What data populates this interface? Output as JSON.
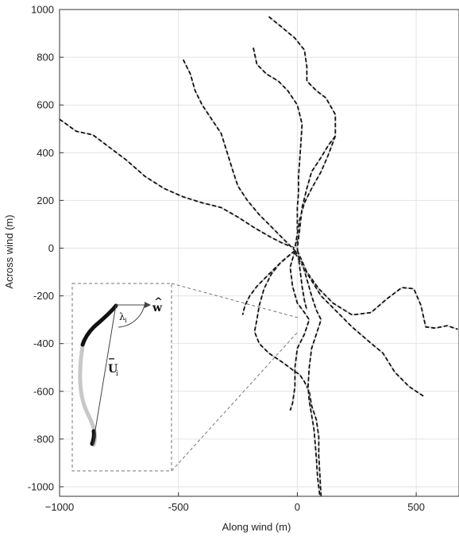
{
  "chart_data": {
    "type": "line",
    "xlabel": "Along wind (m)",
    "ylabel": "Across wind (m)",
    "xlim": [
      -1000,
      680
    ],
    "ylim": [
      -1040,
      1000
    ],
    "xticks": [
      -1000,
      -500,
      0,
      500
    ],
    "xtick_labels": [
      "−1000",
      "-500",
      "0",
      "500"
    ],
    "yticks": [
      1000,
      800,
      600,
      400,
      200,
      0,
      -200,
      -400,
      -600,
      -800,
      -1000
    ],
    "ytick_labels": [
      "1000",
      "800",
      "600",
      "400",
      "200",
      "0",
      "-200",
      "-400",
      "-600",
      "-800",
      "-1000"
    ],
    "grid": true,
    "colors": {
      "track": "#111111",
      "gap": "#c8c8c8",
      "grid": "#e3e3e3",
      "inset": "#777777"
    },
    "series": [
      {
        "points": [
          [
            -1000,
            540
          ],
          [
            -930,
            490
          ],
          [
            -860,
            475
          ],
          [
            -800,
            430
          ],
          [
            -720,
            370
          ],
          [
            -640,
            300
          ],
          [
            -560,
            250
          ],
          [
            -480,
            215
          ],
          [
            -400,
            190
          ],
          [
            -320,
            170
          ],
          [
            -250,
            130
          ],
          [
            -180,
            85
          ],
          [
            -110,
            45
          ],
          [
            -60,
            20
          ],
          [
            -10,
            0
          ]
        ]
      },
      {
        "points": [
          [
            -480,
            790
          ],
          [
            -450,
            730
          ],
          [
            -430,
            660
          ],
          [
            -400,
            600
          ],
          [
            -360,
            540
          ],
          [
            -320,
            480
          ],
          [
            -295,
            400
          ],
          [
            -270,
            320
          ],
          [
            -250,
            260
          ],
          [
            -210,
            200
          ],
          [
            -160,
            140
          ],
          [
            -110,
            90
          ],
          [
            -60,
            40
          ],
          [
            -10,
            -10
          ]
        ]
      },
      {
        "points": [
          [
            -185,
            840
          ],
          [
            -170,
            770
          ],
          [
            -130,
            730
          ],
          [
            -80,
            700
          ],
          [
            -40,
            660
          ],
          [
            0,
            600
          ],
          [
            20,
            520
          ],
          [
            15,
            440
          ],
          [
            10,
            370
          ],
          [
            5,
            300
          ],
          [
            5,
            230
          ],
          [
            0,
            170
          ],
          [
            0,
            100
          ],
          [
            0,
            40
          ],
          [
            0,
            -10
          ]
        ]
      },
      {
        "points": [
          [
            -120,
            970
          ],
          [
            -70,
            930
          ],
          [
            -10,
            880
          ],
          [
            30,
            830
          ],
          [
            40,
            760
          ],
          [
            40,
            700
          ],
          [
            80,
            660
          ],
          [
            120,
            630
          ],
          [
            160,
            560
          ],
          [
            160,
            470
          ],
          [
            130,
            390
          ],
          [
            100,
            320
          ],
          [
            60,
            250
          ],
          [
            30,
            190
          ],
          [
            10,
            120
          ],
          [
            0,
            60
          ],
          [
            -10,
            0
          ]
        ]
      },
      {
        "points": [
          [
            160,
            470
          ],
          [
            130,
            430
          ],
          [
            100,
            380
          ],
          [
            60,
            320
          ],
          [
            40,
            250
          ],
          [
            20,
            170
          ],
          [
            10,
            80
          ],
          [
            0,
            0
          ],
          [
            10,
            -80
          ],
          [
            20,
            -160
          ],
          [
            30,
            -220
          ],
          [
            40,
            -260
          ]
        ]
      },
      {
        "points": [
          [
            0,
            -10
          ],
          [
            40,
            -100
          ],
          [
            90,
            -170
          ],
          [
            150,
            -230
          ],
          [
            230,
            -280
          ],
          [
            310,
            -270
          ],
          [
            380,
            -210
          ],
          [
            440,
            -165
          ],
          [
            490,
            -170
          ],
          [
            520,
            -240
          ],
          [
            540,
            -330
          ],
          [
            580,
            -335
          ],
          [
            630,
            -325
          ],
          [
            675,
            -340
          ]
        ]
      },
      {
        "points": [
          [
            -10,
            -20
          ],
          [
            50,
            -120
          ],
          [
            100,
            -200
          ],
          [
            160,
            -260
          ],
          [
            230,
            -330
          ],
          [
            300,
            -390
          ],
          [
            360,
            -440
          ],
          [
            410,
            -520
          ],
          [
            470,
            -580
          ],
          [
            530,
            -620
          ]
        ]
      },
      {
        "points": [
          [
            -10,
            -10
          ],
          [
            -70,
            -60
          ],
          [
            -110,
            -110
          ],
          [
            -140,
            -170
          ],
          [
            -160,
            -240
          ],
          [
            -170,
            -300
          ],
          [
            -180,
            -350
          ],
          [
            -160,
            -400
          ],
          [
            -120,
            -440
          ],
          [
            -60,
            -480
          ],
          [
            -20,
            -510
          ],
          [
            10,
            -530
          ],
          [
            30,
            -560
          ],
          [
            50,
            -600
          ],
          [
            60,
            -660
          ],
          [
            80,
            -720
          ],
          [
            90,
            -790
          ],
          [
            90,
            -870
          ],
          [
            95,
            -950
          ],
          [
            100,
            -1040
          ]
        ]
      },
      {
        "points": [
          [
            -10,
            -10
          ],
          [
            -80,
            -70
          ],
          [
            -130,
            -120
          ],
          [
            -170,
            -160
          ],
          [
            -200,
            -200
          ],
          [
            -220,
            -240
          ],
          [
            -230,
            -280
          ]
        ]
      },
      {
        "points": [
          [
            -10,
            -10
          ],
          [
            -30,
            -80
          ],
          [
            -20,
            -160
          ],
          [
            0,
            -230
          ],
          [
            30,
            -270
          ],
          [
            50,
            -300
          ],
          [
            30,
            -360
          ],
          [
            0,
            -420
          ],
          [
            -10,
            -500
          ],
          [
            -10,
            -580
          ],
          [
            -20,
            -650
          ],
          [
            -30,
            -680
          ]
        ]
      },
      {
        "points": [
          [
            -10,
            -10
          ],
          [
            20,
            -60
          ],
          [
            40,
            -130
          ],
          [
            60,
            -200
          ],
          [
            80,
            -260
          ],
          [
            100,
            -300
          ],
          [
            80,
            -360
          ],
          [
            60,
            -420
          ],
          [
            50,
            -500
          ],
          [
            45,
            -580
          ],
          [
            50,
            -640
          ],
          [
            60,
            -700
          ],
          [
            70,
            -760
          ],
          [
            75,
            -820
          ],
          [
            80,
            -880
          ],
          [
            85,
            -960
          ],
          [
            95,
            -1040
          ]
        ]
      }
    ],
    "inset": {
      "labels": {
        "w": "w",
        "w_hat": "^",
        "u": "U",
        "u_sub": "i",
        "u_bar": "_",
        "lambda": "λ",
        "lambda_sub": "i"
      }
    }
  }
}
